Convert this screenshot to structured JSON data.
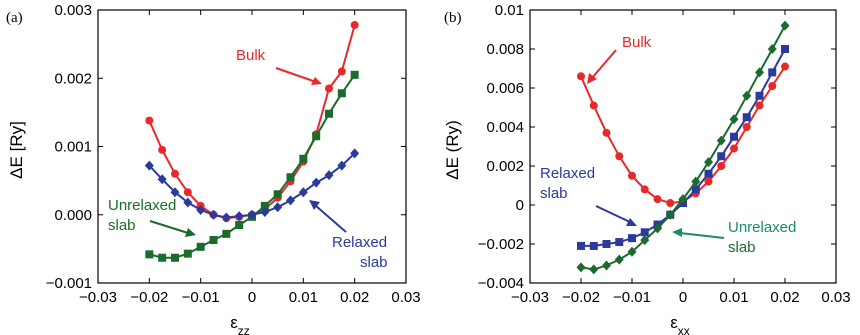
{
  "chart_data": [
    {
      "type": "line",
      "panel_label": "(a)",
      "xlabel": "ε",
      "xlabel_sub": "zz",
      "ylabel": "ΔE [Ry]",
      "xlim": [
        -0.03,
        0.03
      ],
      "ylim": [
        -0.001,
        0.003
      ],
      "xticks": [
        -0.03,
        -0.02,
        -0.01,
        0,
        0.01,
        0.02,
        0.03
      ],
      "xtick_labels": [
        "−0.03",
        "−0.02",
        "−0.01",
        "0",
        "0.01",
        "0.02",
        "0.03"
      ],
      "yticks": [
        -0.001,
        0,
        0.001,
        0.002,
        0.003
      ],
      "ytick_labels": [
        "−0.001",
        "0.000",
        "0.001",
        "0.002",
        "0.003"
      ],
      "grid": false,
      "series": [
        {
          "key": "bulk",
          "color": "#e8282b",
          "marker": "circle",
          "x": [
            -0.02,
            -0.0175,
            -0.015,
            -0.0125,
            -0.01,
            -0.0075,
            -0.005,
            -0.0025,
            0,
            0.0025,
            0.005,
            0.0075,
            0.01,
            0.0125,
            0.015,
            0.0175,
            0.02
          ],
          "y": [
            0.00138,
            0.00095,
            0.0006,
            0.00033,
            0.00013,
            0.0,
            -5e-05,
            -3e-05,
            0.0,
            8e-05,
            0.00025,
            0.00049,
            0.00078,
            0.00118,
            0.00185,
            0.0021,
            0.00278
          ]
        },
        {
          "key": "unrelaxed",
          "color": "#1a6b2c",
          "marker": "square",
          "x": [
            -0.02,
            -0.0175,
            -0.015,
            -0.0125,
            -0.01,
            -0.0075,
            -0.005,
            -0.0025,
            0,
            0.0025,
            0.005,
            0.0075,
            0.01,
            0.0125,
            0.015,
            0.0175,
            0.02
          ],
          "y": [
            -0.00058,
            -0.00063,
            -0.00063,
            -0.00057,
            -0.00047,
            -0.00037,
            -0.00028,
            -0.00015,
            -3e-05,
            0.00013,
            0.0003,
            0.00055,
            0.00082,
            0.00115,
            0.00148,
            0.00178,
            0.00205
          ]
        },
        {
          "key": "relaxed",
          "color": "#2b3a9c",
          "marker": "diamond",
          "x": [
            -0.02,
            -0.0175,
            -0.015,
            -0.0125,
            -0.01,
            -0.0075,
            -0.005,
            -0.0025,
            0,
            0.0025,
            0.005,
            0.0075,
            0.01,
            0.0125,
            0.015,
            0.0175,
            0.02
          ],
          "y": [
            0.00072,
            0.00052,
            0.00033,
            0.00018,
            7e-05,
            0.0,
            -4e-05,
            -2e-05,
            0.0,
            4e-05,
            0.00011,
            0.00021,
            0.00033,
            0.00047,
            0.00058,
            0.00072,
            0.0009
          ]
        }
      ],
      "annotations": [
        {
          "text": "Bulk",
          "color": "#e8282b"
        },
        {
          "text": "Unrelaxed",
          "color": "#1a6b2c"
        },
        {
          "text": "slab",
          "color": "#1a6b2c"
        },
        {
          "text": "Relaxed",
          "color": "#2b3a9c"
        },
        {
          "text": "slab",
          "color": "#2b3a9c"
        }
      ]
    },
    {
      "type": "line",
      "panel_label": "(b)",
      "xlabel": "ε",
      "xlabel_sub": "xx",
      "ylabel": "ΔE (Ry)",
      "xlim": [
        -0.03,
        0.03
      ],
      "ylim": [
        -0.004,
        0.01
      ],
      "xticks": [
        -0.03,
        -0.02,
        -0.01,
        0,
        0.01,
        0.02,
        0.03
      ],
      "xtick_labels": [
        "−0.03",
        "−0.02",
        "−0.01",
        "0",
        "0.01",
        "0.02",
        "0.03"
      ],
      "yticks": [
        -0.004,
        -0.002,
        0,
        0.002,
        0.004,
        0.006,
        0.008,
        0.01
      ],
      "ytick_labels": [
        "−0.004",
        "−0.002",
        "0",
        "0.002",
        "0.004",
        "0.006",
        "0.008",
        "0.01"
      ],
      "grid": false,
      "series": [
        {
          "key": "bulk",
          "color": "#e8282b",
          "marker": "circle",
          "x": [
            -0.02,
            -0.0175,
            -0.015,
            -0.0125,
            -0.01,
            -0.0075,
            -0.005,
            -0.0025,
            0,
            0.0025,
            0.005,
            0.0075,
            0.01,
            0.0125,
            0.015,
            0.0175,
            0.02
          ],
          "y": [
            0.0066,
            0.0051,
            0.0037,
            0.0025,
            0.0015,
            0.0008,
            0.0003,
            0.0001,
            0.00018,
            0.0006,
            0.0012,
            0.002,
            0.0029,
            0.004,
            0.0051,
            0.0061,
            0.0071
          ]
        },
        {
          "key": "relaxed",
          "color": "#2b3a9c",
          "marker": "square",
          "x": [
            -0.02,
            -0.0175,
            -0.015,
            -0.0125,
            -0.01,
            -0.0075,
            -0.005,
            -0.0025,
            0,
            0.0025,
            0.005,
            0.0075,
            0.01,
            0.0125,
            0.015,
            0.0175,
            0.02
          ],
          "y": [
            -0.0021,
            -0.0021,
            -0.002,
            -0.0019,
            -0.0017,
            -0.0014,
            -0.001,
            -0.0005,
            0.0001,
            0.0008,
            0.0016,
            0.0025,
            0.0035,
            0.0045,
            0.0056,
            0.0068,
            0.008
          ]
        },
        {
          "key": "unrelaxed",
          "color": "#1a6b2c",
          "marker": "diamond",
          "x": [
            -0.02,
            -0.0175,
            -0.015,
            -0.0125,
            -0.01,
            -0.0075,
            -0.005,
            -0.0025,
            0,
            0.0025,
            0.005,
            0.0075,
            0.01,
            0.0125,
            0.015,
            0.0175,
            0.02
          ],
          "y": [
            -0.0032,
            -0.0033,
            -0.0031,
            -0.0028,
            -0.0024,
            -0.0018,
            -0.0012,
            -0.0005,
            0.0003,
            0.0012,
            0.0022,
            0.0033,
            0.0044,
            0.0056,
            0.0068,
            0.008,
            0.0092
          ]
        }
      ],
      "annotations": [
        {
          "text": "Bulk",
          "color": "#e8282b"
        },
        {
          "text": "Relaxed",
          "color": "#2b3a9c"
        },
        {
          "text": "slab",
          "color": "#2b3a9c"
        },
        {
          "text": "Unrelaxed",
          "color": "#1a8a6a"
        },
        {
          "text": "slab",
          "color": "#1a6b2c"
        }
      ]
    }
  ]
}
